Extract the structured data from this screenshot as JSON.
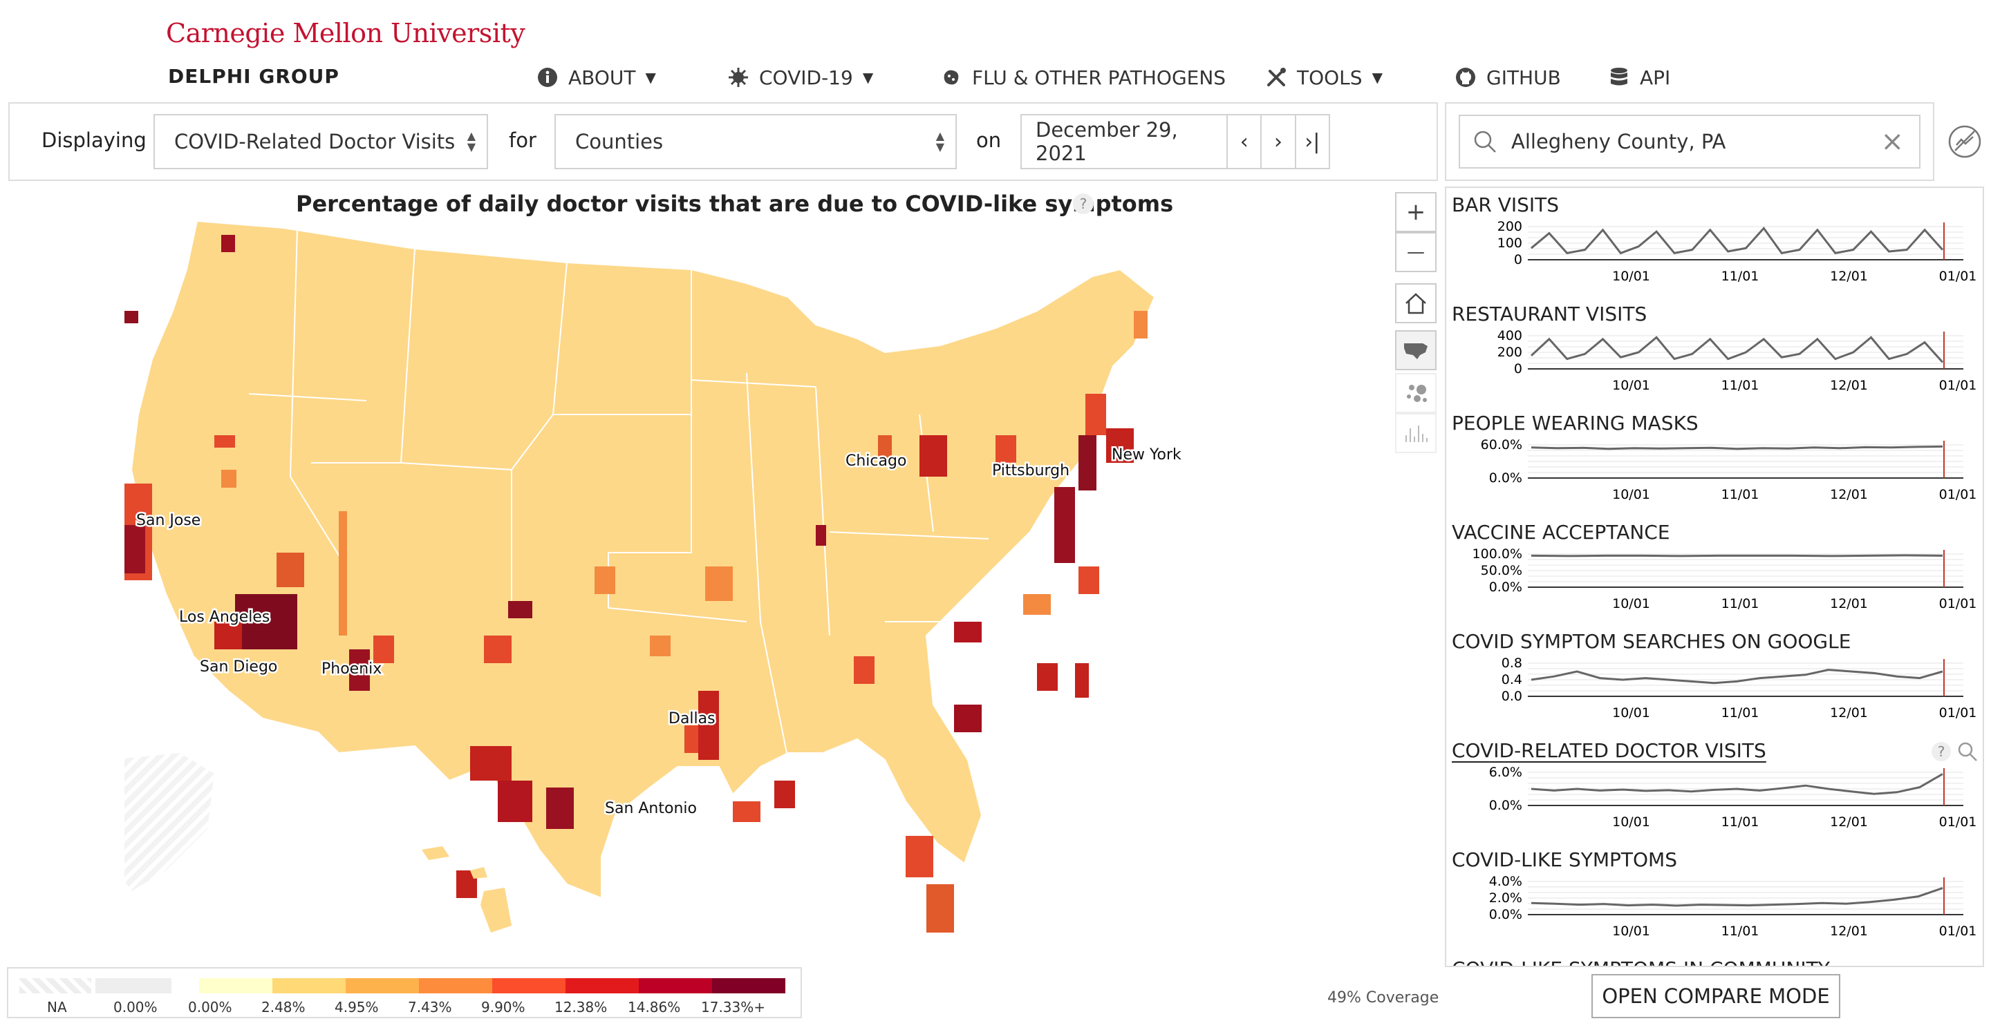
{
  "header": {
    "university": "Carnegie Mellon University",
    "group": "DELPHI GROUP",
    "nav": [
      {
        "label": "ABOUT",
        "icon": "info-icon",
        "dropdown": true
      },
      {
        "label": "COVID-19",
        "icon": "virus-icon",
        "dropdown": true
      },
      {
        "label": "FLU & OTHER PATHOGENS",
        "icon": "pathogen-icon",
        "dropdown": false
      },
      {
        "label": "TOOLS",
        "icon": "tools-icon",
        "dropdown": true
      },
      {
        "label": "GITHUB",
        "icon": "github-icon",
        "dropdown": false
      },
      {
        "label": "API",
        "icon": "database-icon",
        "dropdown": false
      }
    ]
  },
  "controls": {
    "displaying_label": "Displaying",
    "signal": "COVID-Related Doctor Visits",
    "for_label": "for",
    "geo": "Counties",
    "on_label": "on",
    "date": "December 29, 2021",
    "prev": "‹",
    "next": "›",
    "last": "›|"
  },
  "search": {
    "value": "Allegheny County, PA",
    "clear": "×"
  },
  "map": {
    "title": "Percentage of daily doctor visits that are due to COVID-like symptoms",
    "help": "?",
    "cities": [
      {
        "name": "New York"
      },
      {
        "name": "Chicago"
      },
      {
        "name": "Pittsburgh"
      },
      {
        "name": "San Jose"
      },
      {
        "name": "Los Angeles"
      },
      {
        "name": "San Diego"
      },
      {
        "name": "Phoenix"
      },
      {
        "name": "Dallas"
      },
      {
        "name": "San Antonio"
      }
    ],
    "zoom_in": "+",
    "zoom_out": "—"
  },
  "panel": {
    "x_ticks": [
      "10/01",
      "11/01",
      "12/01",
      "01/01"
    ],
    "signals": [
      {
        "name": "BAR VISITS",
        "y_ticks": [
          "200",
          "100",
          "0"
        ]
      },
      {
        "name": "RESTAURANT VISITS",
        "y_ticks": [
          "400",
          "200",
          "0"
        ]
      },
      {
        "name": "PEOPLE WEARING MASKS",
        "y_ticks": [
          "60.0%",
          "0.0%"
        ]
      },
      {
        "name": "VACCINE ACCEPTANCE",
        "y_ticks": [
          "100.0%",
          "50.0%",
          "0.0%"
        ]
      },
      {
        "name": "COVID SYMPTOM SEARCHES ON GOOGLE",
        "y_ticks": [
          "0.8",
          "0.4",
          "0.0"
        ]
      },
      {
        "name": "COVID-RELATED DOCTOR VISITS",
        "y_ticks": [
          "6.0%",
          "0.0%"
        ],
        "active": true
      },
      {
        "name": "COVID-LIKE SYMPTOMS",
        "y_ticks": [
          "4.0%",
          "2.0%",
          "0.0%"
        ]
      },
      {
        "name": "COVID-LIKE SYMPTOMS IN COMMUNITY",
        "y_ticks": []
      }
    ]
  },
  "legend": {
    "na_label": "NA",
    "zero_label": "0.00%",
    "ticks": [
      "0.00%",
      "2.48%",
      "4.95%",
      "7.43%",
      "9.90%",
      "12.38%",
      "14.86%",
      "17.33%+"
    ],
    "colors": [
      "#ffffcc",
      "#ffeda0",
      "#fed976",
      "#feb24c",
      "#fd8d3c",
      "#fc4e2a",
      "#e31a1c",
      "#bd0026",
      "#800026"
    ]
  },
  "coverage": "49% Coverage",
  "compare_button": "OPEN COMPARE MODE",
  "colors": {
    "brand": "#c41230",
    "marker": "#c0392b",
    "line": "#666666"
  }
}
